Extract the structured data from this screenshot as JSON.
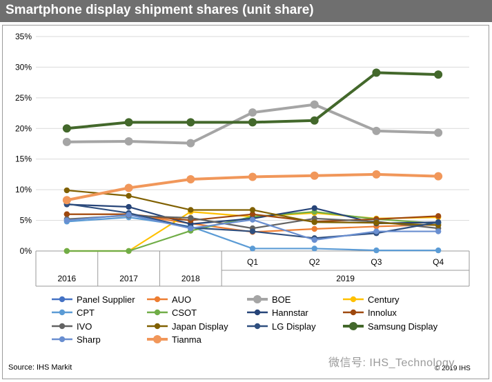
{
  "chart_data": {
    "type": "line",
    "title": "Smartphone display shipment shares  (unit share)",
    "ylim": [
      0,
      35
    ],
    "y_ticks": [
      "0%",
      "5%",
      "10%",
      "15%",
      "20%",
      "25%",
      "30%",
      "35%"
    ],
    "categories": [
      "2016",
      "2017",
      "2018",
      "Q1",
      "Q2",
      "Q3",
      "Q4"
    ],
    "group_labels": [
      "2016",
      "2017",
      "2018",
      "2019"
    ],
    "series": [
      {
        "name": "Panel Supplier",
        "color": "#4472c4",
        "values": [
          null,
          null,
          null,
          null,
          null,
          null,
          null
        ]
      },
      {
        "name": "AUO",
        "color": "#ed7d31",
        "values": [
          6.0,
          6.0,
          4.5,
          3.1,
          3.6,
          4.0,
          4.3
        ]
      },
      {
        "name": "BOE",
        "color": "#a5a5a5",
        "values": [
          17.8,
          17.9,
          17.6,
          22.6,
          23.9,
          19.6,
          19.3
        ]
      },
      {
        "name": "Century",
        "color": "#ffc000",
        "values": [
          0,
          0,
          6.4,
          5.6,
          6.2,
          5.3,
          5.5
        ]
      },
      {
        "name": "CPT",
        "color": "#5b9bd5",
        "values": [
          4.8,
          5.5,
          4.0,
          0.4,
          0.4,
          0.1,
          0.1
        ]
      },
      {
        "name": "CSOT",
        "color": "#70ad47",
        "values": [
          0,
          0,
          3.3,
          5.6,
          6.4,
          5.2,
          4.5
        ]
      },
      {
        "name": "Hannstar",
        "color": "#264478",
        "values": [
          7.6,
          7.2,
          4.4,
          5.3,
          7.0,
          4.5,
          4.7
        ]
      },
      {
        "name": "Innolux",
        "color": "#9e480e",
        "values": [
          6.0,
          6.0,
          5.0,
          6.0,
          4.8,
          5.2,
          5.7
        ]
      },
      {
        "name": "IVO",
        "color": "#636363",
        "values": [
          5.2,
          5.8,
          5.4,
          3.7,
          5.3,
          4.8,
          3.7
        ]
      },
      {
        "name": "Japan Display",
        "color": "#806000",
        "values": [
          9.9,
          9.0,
          6.7,
          6.7,
          4.7,
          4.6,
          4.2
        ]
      },
      {
        "name": "LG Display",
        "color": "#2f4f7f",
        "values": [
          7.7,
          6.2,
          3.8,
          3.2,
          2.1,
          2.9,
          4.7
        ]
      },
      {
        "name": "Samsung Display",
        "color": "#43682b",
        "values": [
          20.0,
          21.0,
          21.0,
          21.0,
          21.3,
          29.1,
          28.8
        ]
      },
      {
        "name": "Sharp",
        "color": "#698ed0",
        "values": [
          5.0,
          5.9,
          3.7,
          5.1,
          1.8,
          3.2,
          3.2
        ]
      },
      {
        "name": "Tianma",
        "color": "#f1975a",
        "values": [
          8.3,
          10.3,
          11.7,
          12.1,
          12.3,
          12.5,
          12.2
        ]
      }
    ]
  },
  "footer": {
    "source": "Source: IHS Markit",
    "copyright": "© 2019 IHS",
    "watermark": "微信号: IHS_Technology"
  }
}
